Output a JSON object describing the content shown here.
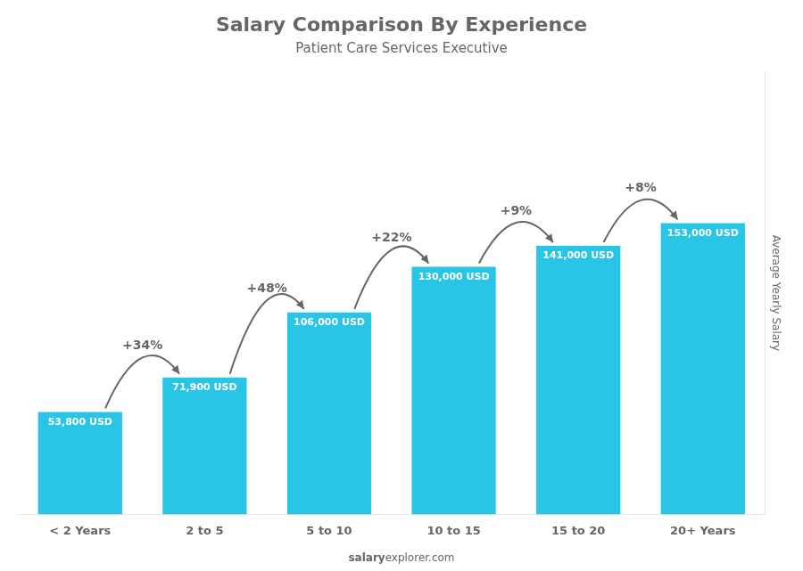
{
  "chart_data": {
    "type": "bar",
    "title": "Salary Comparison By Experience",
    "subtitle": "Patient Care Services Executive",
    "categories": [
      "< 2 Years",
      "2 to 5",
      "5 to 10",
      "10 to 15",
      "15 to 20",
      "20+ Years"
    ],
    "values": [
      53800,
      71900,
      106000,
      130000,
      141000,
      153000
    ],
    "value_labels": [
      "53,800 USD",
      "71,900 USD",
      "106,000 USD",
      "130,000 USD",
      "141,000 USD",
      "153,000 USD"
    ],
    "data_labels": true,
    "color": "#29c5e6",
    "ylabel": "Average Yearly Salary",
    "ylim": [
      0,
      232560
    ],
    "tick_labels": "x",
    "grid": false,
    "annotations": [
      "+34%",
      "+48%",
      "+22%",
      "+9%",
      "+8%"
    ],
    "watermark": [
      "salary",
      "explorer.com"
    ]
  }
}
